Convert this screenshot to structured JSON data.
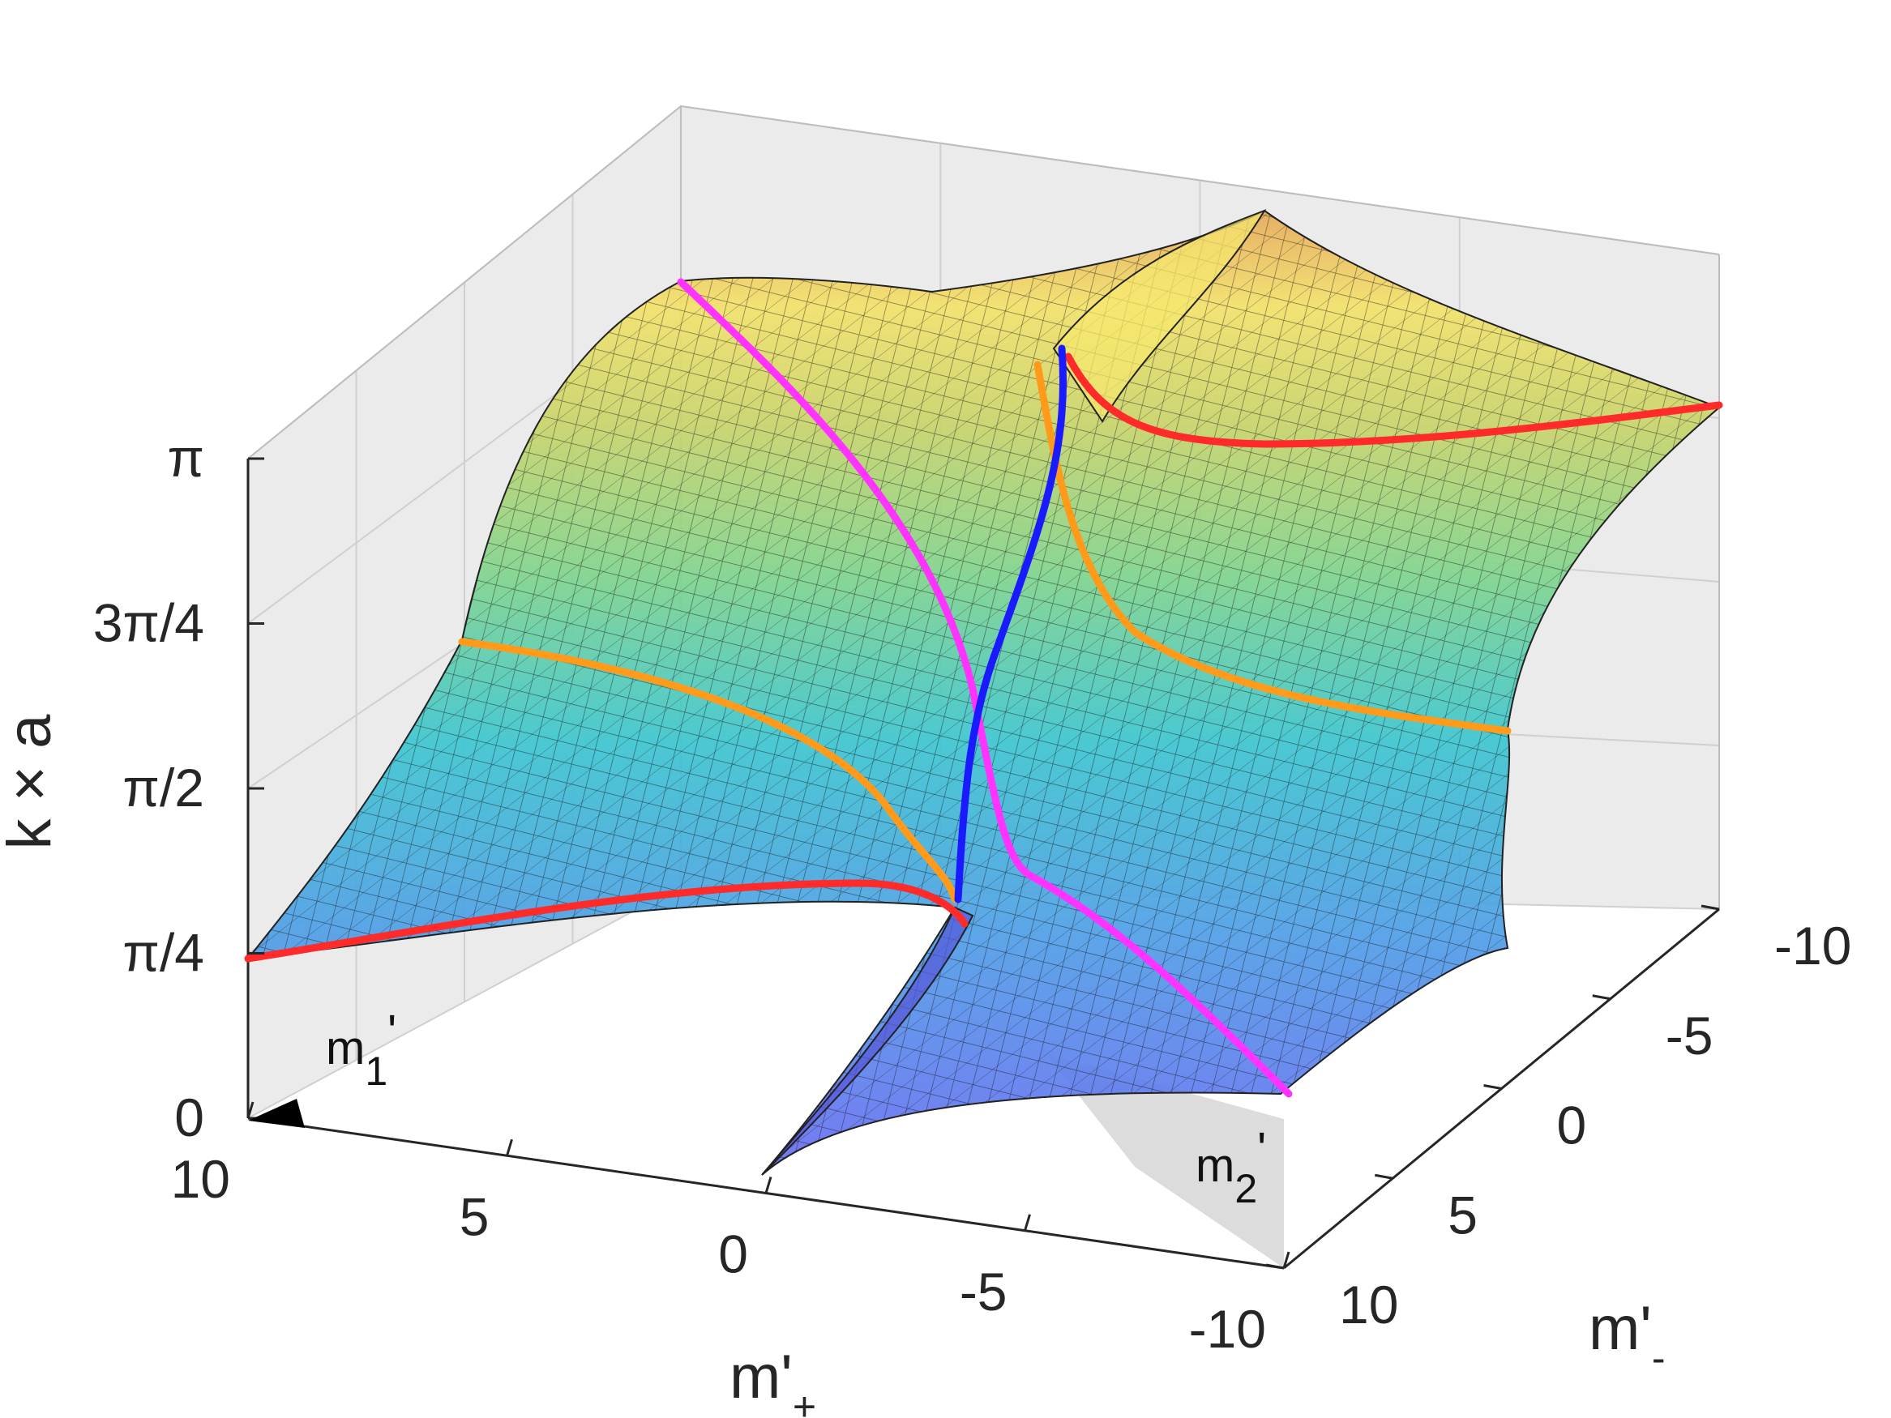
{
  "chart_data": {
    "type": "surface",
    "grid": true,
    "zlabel": "k × a",
    "xlabel_main": "m'",
    "xlabel_sub": "+",
    "ylabel_main": "m'",
    "ylabel_sub": "-",
    "x_ticks": [
      "10",
      "5",
      "0",
      "-5",
      "-10"
    ],
    "y_ticks": [
      "-10",
      "-5",
      "0",
      "5",
      "10"
    ],
    "z_ticks": [
      "0",
      "π/4",
      "π/2",
      "3π/4",
      "π"
    ],
    "xlim": [
      -10,
      10
    ],
    "ylim": [
      -10,
      10
    ],
    "zlim": [
      0,
      3.1416
    ],
    "annotations": {
      "m1_main": "m",
      "m1_sub": "1",
      "m1_prime": "'",
      "m2_main": "m",
      "m2_sub": "2",
      "m2_prime": "'"
    },
    "colormap": [
      "#6a6cf2",
      "#4f9ee6",
      "#3dc6d0",
      "#7fd48e",
      "#c9d46a",
      "#f3e26a",
      "#e7a95a"
    ],
    "series": [
      {
        "color": "#ff2a2a",
        "points": [
          [
            10,
            10,
            0.785
          ],
          [
            5,
            6,
            0.9
          ],
          [
            2,
            2,
            1.05
          ],
          [
            0.5,
            0.2,
            1.15
          ]
        ]
      },
      {
        "color": "#ff2a2a",
        "points": [
          [
            -0.5,
            -0.2,
            1.99
          ],
          [
            -3,
            -2,
            2.05
          ],
          [
            -7,
            -6,
            2.15
          ],
          [
            -10,
            -10,
            2.356
          ]
        ]
      },
      {
        "color": "#ff9a1a",
        "points": [
          [
            10,
            -10,
            2.356
          ],
          [
            5,
            -6,
            2.0
          ],
          [
            2,
            -2,
            1.6
          ],
          [
            0.5,
            -0.3,
            1.2
          ]
        ]
      },
      {
        "color": "#ff9a1a",
        "points": [
          [
            -0.5,
            0.3,
            2.0
          ],
          [
            -3,
            2,
            1.5
          ],
          [
            -7,
            6,
            1.1
          ],
          [
            -10,
            10,
            0.785
          ]
        ]
      },
      {
        "color": "#ff33ff",
        "points": [
          [
            10,
            -10,
            2.9
          ],
          [
            4,
            -4,
            2.4
          ],
          [
            0,
            0,
            1.6
          ],
          [
            -4,
            4,
            0.9
          ],
          [
            -10,
            10,
            0.3
          ]
        ]
      },
      {
        "color": "#1a1aff",
        "points": [
          [
            -0.2,
            0.2,
            2.8
          ],
          [
            -0.1,
            0.1,
            2.0
          ],
          [
            0,
            0,
            1.6
          ],
          [
            0.1,
            -0.1,
            1.2
          ]
        ]
      }
    ]
  }
}
